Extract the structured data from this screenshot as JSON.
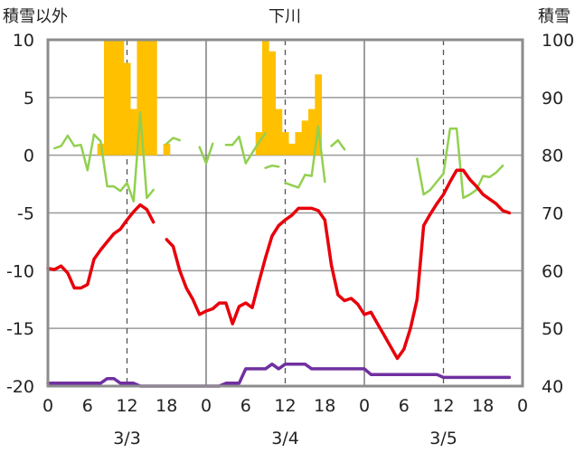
{
  "chart_data": {
    "type": "combo",
    "title": "下川",
    "left_axis_label": "積雪以外",
    "right_axis_label": "積雪",
    "left_ylim": [
      -20,
      10
    ],
    "right_ylim": [
      40,
      100
    ],
    "left_ticks": [
      10,
      5,
      0,
      -5,
      -10,
      -15,
      -20
    ],
    "right_ticks": [
      100,
      90,
      80,
      70,
      60,
      50,
      40
    ],
    "xlim": [
      0,
      72
    ],
    "x_ticks": [
      {
        "x": 0,
        "label": "0"
      },
      {
        "x": 6,
        "label": "6"
      },
      {
        "x": 12,
        "label": "12"
      },
      {
        "x": 18,
        "label": "18"
      },
      {
        "x": 24,
        "label": "0"
      },
      {
        "x": 30,
        "label": "6"
      },
      {
        "x": 36,
        "label": "12"
      },
      {
        "x": 42,
        "label": "18"
      },
      {
        "x": 48,
        "label": "0"
      },
      {
        "x": 54,
        "label": "6"
      },
      {
        "x": 60,
        "label": "12"
      },
      {
        "x": 66,
        "label": "18"
      },
      {
        "x": 72,
        "label": "0"
      }
    ],
    "dates": [
      {
        "x": 12,
        "label": "3/3"
      },
      {
        "x": 36,
        "label": "3/4"
      },
      {
        "x": 60,
        "label": "3/5"
      }
    ],
    "day_boundaries": [
      24,
      48
    ],
    "noon_lines": [
      12,
      36,
      60
    ],
    "grid": "horizontal",
    "series": [
      {
        "type": "bar",
        "axis": "left",
        "color": "#FFC000",
        "x": [
          8,
          9,
          10,
          11,
          12,
          13,
          14,
          15,
          16,
          18,
          32,
          33,
          34,
          35,
          36,
          37,
          38,
          39,
          40,
          41
        ],
        "values": [
          1,
          10,
          10,
          10,
          8,
          4,
          10,
          10,
          10,
          1,
          2,
          10,
          9,
          4,
          2,
          1,
          2,
          3,
          4,
          7
        ]
      },
      {
        "type": "line",
        "axis": "left",
        "color": "#92D050",
        "segments": [
          [
            [
              1,
              0.6
            ],
            [
              2,
              0.8
            ],
            [
              3,
              1.7
            ],
            [
              4,
              0.8
            ],
            [
              5,
              0.9
            ],
            [
              6,
              -1.3
            ],
            [
              7,
              1.8
            ],
            [
              8,
              1.2
            ],
            [
              9,
              -2.7
            ],
            [
              10,
              -2.7
            ],
            [
              11,
              -3.1
            ],
            [
              12,
              -2.4
            ],
            [
              13,
              -4
            ],
            [
              14,
              3.7
            ],
            [
              15,
              -3.7
            ],
            [
              16,
              -3
            ]
          ],
          [
            [
              18,
              1
            ],
            [
              19,
              1.5
            ],
            [
              20,
              1.3
            ]
          ],
          [
            [
              23,
              0.7
            ],
            [
              24,
              -0.7
            ],
            [
              25,
              1.0
            ]
          ],
          [
            [
              27,
              0.9
            ],
            [
              28,
              0.9
            ],
            [
              29,
              1.6
            ],
            [
              30,
              -0.7
            ],
            [
              31,
              0.2
            ],
            [
              32,
              1.1
            ],
            [
              33,
              1.9
            ]
          ],
          [
            [
              33,
              -1.1
            ],
            [
              34,
              -0.9
            ],
            [
              35,
              -1.0
            ]
          ],
          [
            [
              36,
              -2.4
            ],
            [
              37,
              -2.6
            ],
            [
              38,
              -2.8
            ],
            [
              39,
              -1.7
            ],
            [
              40,
              -1.8
            ],
            [
              41,
              2.5
            ],
            [
              42,
              -2.3
            ]
          ],
          [
            [
              43,
              0.8
            ],
            [
              44,
              1.3
            ],
            [
              45,
              0.5
            ]
          ],
          [
            [
              56,
              -0.3
            ],
            [
              57,
              -3.4
            ],
            [
              58,
              -3.0
            ],
            [
              59,
              -2.3
            ],
            [
              60,
              -1.6
            ],
            [
              61,
              2.3
            ],
            [
              62,
              2.3
            ],
            [
              63,
              -3.7
            ],
            [
              64,
              -3.4
            ],
            [
              65,
              -3
            ],
            [
              66,
              -1.8
            ],
            [
              67,
              -1.9
            ],
            [
              68,
              -1.5
            ],
            [
              69,
              -0.9
            ]
          ]
        ]
      },
      {
        "type": "line",
        "axis": "left",
        "color": "#E8000B",
        "segments": [
          [
            [
              0,
              -9.8
            ],
            [
              1,
              -9.9
            ],
            [
              2,
              -9.6
            ],
            [
              3,
              -10.2
            ],
            [
              4,
              -11.5
            ],
            [
              5,
              -11.5
            ],
            [
              6,
              -11.2
            ],
            [
              7,
              -9
            ],
            [
              8,
              -8.2
            ],
            [
              9,
              -7.5
            ],
            [
              10,
              -6.8
            ],
            [
              11,
              -6.4
            ],
            [
              12,
              -5.6
            ],
            [
              13,
              -4.9
            ],
            [
              14,
              -4.3
            ],
            [
              15,
              -4.7
            ],
            [
              16,
              -5.8
            ]
          ],
          [
            [
              18,
              -7.3
            ],
            [
              19,
              -7.9
            ],
            [
              20,
              -10.0
            ],
            [
              21,
              -11.5
            ],
            [
              22,
              -12.5
            ],
            [
              23,
              -13.8
            ],
            [
              24,
              -13.5
            ],
            [
              25,
              -13.3
            ],
            [
              26,
              -12.8
            ],
            [
              27,
              -12.8
            ],
            [
              28,
              -14.6
            ],
            [
              29,
              -13.1
            ],
            [
              30,
              -12.8
            ],
            [
              31,
              -13.2
            ],
            [
              32,
              -11.0
            ],
            [
              33,
              -8.9
            ],
            [
              34,
              -7.0
            ],
            [
              35,
              -6.1
            ],
            [
              36,
              -5.6
            ],
            [
              37,
              -5.2
            ],
            [
              38,
              -4.6
            ],
            [
              39,
              -4.6
            ],
            [
              40,
              -4.6
            ],
            [
              41,
              -4.8
            ],
            [
              42,
              -5.6
            ],
            [
              43,
              -9.5
            ],
            [
              44,
              -12.1
            ],
            [
              45,
              -12.6
            ],
            [
              46,
              -12.4
            ],
            [
              47,
              -12.9
            ],
            [
              48,
              -13.8
            ],
            [
              49,
              -13.6
            ],
            [
              50,
              -14.6
            ],
            [
              51,
              -15.6
            ],
            [
              52,
              -16.6
            ],
            [
              53,
              -17.6
            ],
            [
              54,
              -16.8
            ],
            [
              55,
              -15.0
            ],
            [
              56,
              -12.5
            ],
            [
              57,
              -6.1
            ],
            [
              58,
              -5.1
            ],
            [
              59,
              -4.2
            ],
            [
              60,
              -3.4
            ],
            [
              61,
              -2.3
            ],
            [
              62,
              -1.3
            ],
            [
              63,
              -1.3
            ],
            [
              64,
              -2.1
            ],
            [
              65,
              -2.7
            ],
            [
              66,
              -3.4
            ],
            [
              67,
              -3.8
            ],
            [
              68,
              -4.2
            ],
            [
              69,
              -4.8
            ],
            [
              70,
              -5.0
            ]
          ]
        ]
      },
      {
        "type": "line",
        "axis": "right",
        "color": "#7030A0",
        "segments": [
          [
            [
              0,
              40.5
            ],
            [
              1,
              40.5
            ],
            [
              2,
              40.5
            ],
            [
              3,
              40.5
            ],
            [
              4,
              40.5
            ],
            [
              5,
              40.5
            ],
            [
              6,
              40.5
            ],
            [
              7,
              40.5
            ],
            [
              8,
              40.5
            ],
            [
              9,
              41.3
            ],
            [
              10,
              41.3
            ],
            [
              11,
              40.5
            ],
            [
              12,
              40.5
            ],
            [
              13,
              40.5
            ],
            [
              14,
              40
            ],
            [
              15,
              40
            ],
            [
              16,
              40
            ],
            [
              17,
              40
            ],
            [
              18,
              40
            ],
            [
              19,
              40
            ],
            [
              20,
              40
            ],
            [
              21,
              40
            ],
            [
              22,
              40
            ],
            [
              23,
              40
            ],
            [
              24,
              40
            ],
            [
              25,
              40
            ],
            [
              26,
              40
            ],
            [
              27,
              40.5
            ],
            [
              28,
              40.5
            ],
            [
              29,
              40.5
            ],
            [
              30,
              43
            ],
            [
              31,
              43
            ],
            [
              32,
              43
            ],
            [
              33,
              43
            ],
            [
              34,
              43.8
            ],
            [
              35,
              43
            ],
            [
              36,
              43.8
            ],
            [
              37,
              43.8
            ],
            [
              38,
              43.8
            ],
            [
              39,
              43.8
            ],
            [
              40,
              43
            ],
            [
              41,
              43
            ],
            [
              42,
              43
            ],
            [
              43,
              43
            ],
            [
              44,
              43
            ],
            [
              45,
              43
            ],
            [
              46,
              43
            ],
            [
              47,
              43
            ],
            [
              48,
              43
            ],
            [
              49,
              42
            ],
            [
              50,
              42
            ],
            [
              51,
              42
            ],
            [
              52,
              42
            ],
            [
              53,
              42
            ],
            [
              54,
              42
            ],
            [
              55,
              42
            ],
            [
              56,
              42
            ],
            [
              57,
              42
            ],
            [
              58,
              42
            ],
            [
              59,
              42
            ],
            [
              60,
              41.5
            ],
            [
              61,
              41.5
            ],
            [
              62,
              41.5
            ],
            [
              63,
              41.5
            ],
            [
              64,
              41.5
            ],
            [
              65,
              41.5
            ],
            [
              66,
              41.5
            ],
            [
              67,
              41.5
            ],
            [
              68,
              41.5
            ],
            [
              69,
              41.5
            ],
            [
              70,
              41.5
            ]
          ]
        ]
      }
    ]
  }
}
